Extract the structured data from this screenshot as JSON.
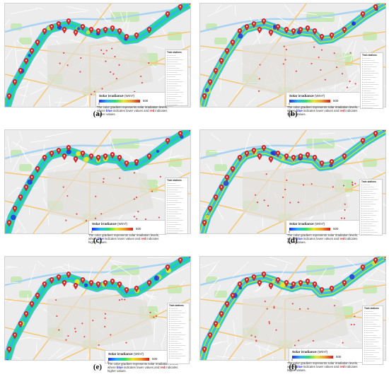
{
  "legend": {
    "title_main": "Solar irradiance",
    "title_unit": "(W/m²)",
    "value_min": "0",
    "value_max": "600",
    "desc_before_blue": "The color gradient represents solar irradiation levels, where ",
    "desc_blue": "blue",
    "desc_middle": " indicates lower values and ",
    "desc_red": "red",
    "desc_after_red": " indicates higher values.",
    "gradient_colors": [
      "#1d2fe0",
      "#2bb3ff",
      "#27e06a",
      "#e8e82e",
      "#f09a2a",
      "#d91c1c"
    ]
  },
  "station_list": {
    "title": "Train stations",
    "count": 24
  },
  "panels": [
    {
      "caption": "(a)",
      "variant": 0
    },
    {
      "caption": "(b)",
      "variant": 1
    },
    {
      "caption": "(c)",
      "variant": 2
    },
    {
      "caption": "(d)",
      "variant": 3
    },
    {
      "caption": "(e)",
      "variant": 4
    },
    {
      "caption": "(f)",
      "variant": 5
    }
  ],
  "colors": {
    "map_background": "#ececec",
    "road_major": "#f5c97a",
    "road_minor": "#ffffff",
    "park": "#c9e8b8",
    "river": "#a9d3f2",
    "marker": "#e32626"
  }
}
